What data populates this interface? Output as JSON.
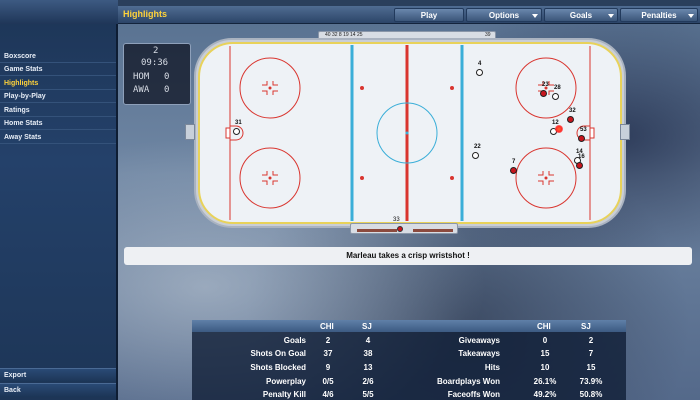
{
  "topbar": {
    "title": "Highlights",
    "buttons": [
      {
        "label": "Play",
        "dropdown": false
      },
      {
        "label": "Options",
        "dropdown": true
      },
      {
        "label": "Goals",
        "dropdown": true
      },
      {
        "label": "Penalties",
        "dropdown": true
      }
    ]
  },
  "sidebar": {
    "items": [
      {
        "label": "Boxscore",
        "active": false
      },
      {
        "label": "Game Stats",
        "active": false
      },
      {
        "label": "Highlights",
        "active": true
      },
      {
        "label": "Play-by-Play",
        "active": false
      },
      {
        "label": "Ratings",
        "active": false
      },
      {
        "label": "Home Stats",
        "active": false
      },
      {
        "label": "Away Stats",
        "active": false
      }
    ],
    "bottom": [
      {
        "label": "Export"
      },
      {
        "label": "Back"
      }
    ]
  },
  "clock": {
    "period": "2",
    "time": "09:36",
    "home_label": "HOM",
    "home_score": "0",
    "away_label": "AWA",
    "away_score": "0"
  },
  "bench_top": {
    "left_numbers": "40 32 8 19 14 25",
    "right_number": "39"
  },
  "bench_bottom": {
    "number": "33"
  },
  "players": [
    {
      "num": "31",
      "team": "white"
    },
    {
      "num": "4",
      "team": "white"
    },
    {
      "num": "22",
      "team": "white"
    },
    {
      "num": "23",
      "team": "red"
    },
    {
      "num": "28",
      "team": "white"
    },
    {
      "num": "32",
      "team": "red"
    },
    {
      "num": "12",
      "team": "white"
    },
    {
      "num": "53",
      "team": "red"
    },
    {
      "num": "14",
      "team": "white"
    },
    {
      "num": "16",
      "team": "red"
    },
    {
      "num": "7",
      "team": "red"
    }
  ],
  "play_by_play": "Marleau takes a crisp wristshot !",
  "stats": {
    "team_a": "CHI",
    "team_b": "SJ",
    "left": [
      {
        "label": "Goals",
        "a": "2",
        "b": "4"
      },
      {
        "label": "Shots On Goal",
        "a": "37",
        "b": "38"
      },
      {
        "label": "Shots Blocked",
        "a": "9",
        "b": "13"
      },
      {
        "label": "Powerplay",
        "a": "0/5",
        "b": "2/6"
      },
      {
        "label": "Penalty Kill",
        "a": "4/6",
        "b": "5/5"
      }
    ],
    "right": [
      {
        "label": "Giveaways",
        "a": "0",
        "b": "2"
      },
      {
        "label": "Takeaways",
        "a": "15",
        "b": "7"
      },
      {
        "label": "Hits",
        "a": "10",
        "b": "15"
      },
      {
        "label": "Boardplays Won",
        "a": "26.1%",
        "b": "73.9%"
      },
      {
        "label": "Faceoffs Won",
        "a": "49.2%",
        "b": "50.8%"
      }
    ]
  },
  "colors": {
    "accent_yellow": "#ffd33a",
    "rink_red": "#d9352f",
    "rink_blue": "#3aaed8",
    "player_red": "#c8161e"
  }
}
